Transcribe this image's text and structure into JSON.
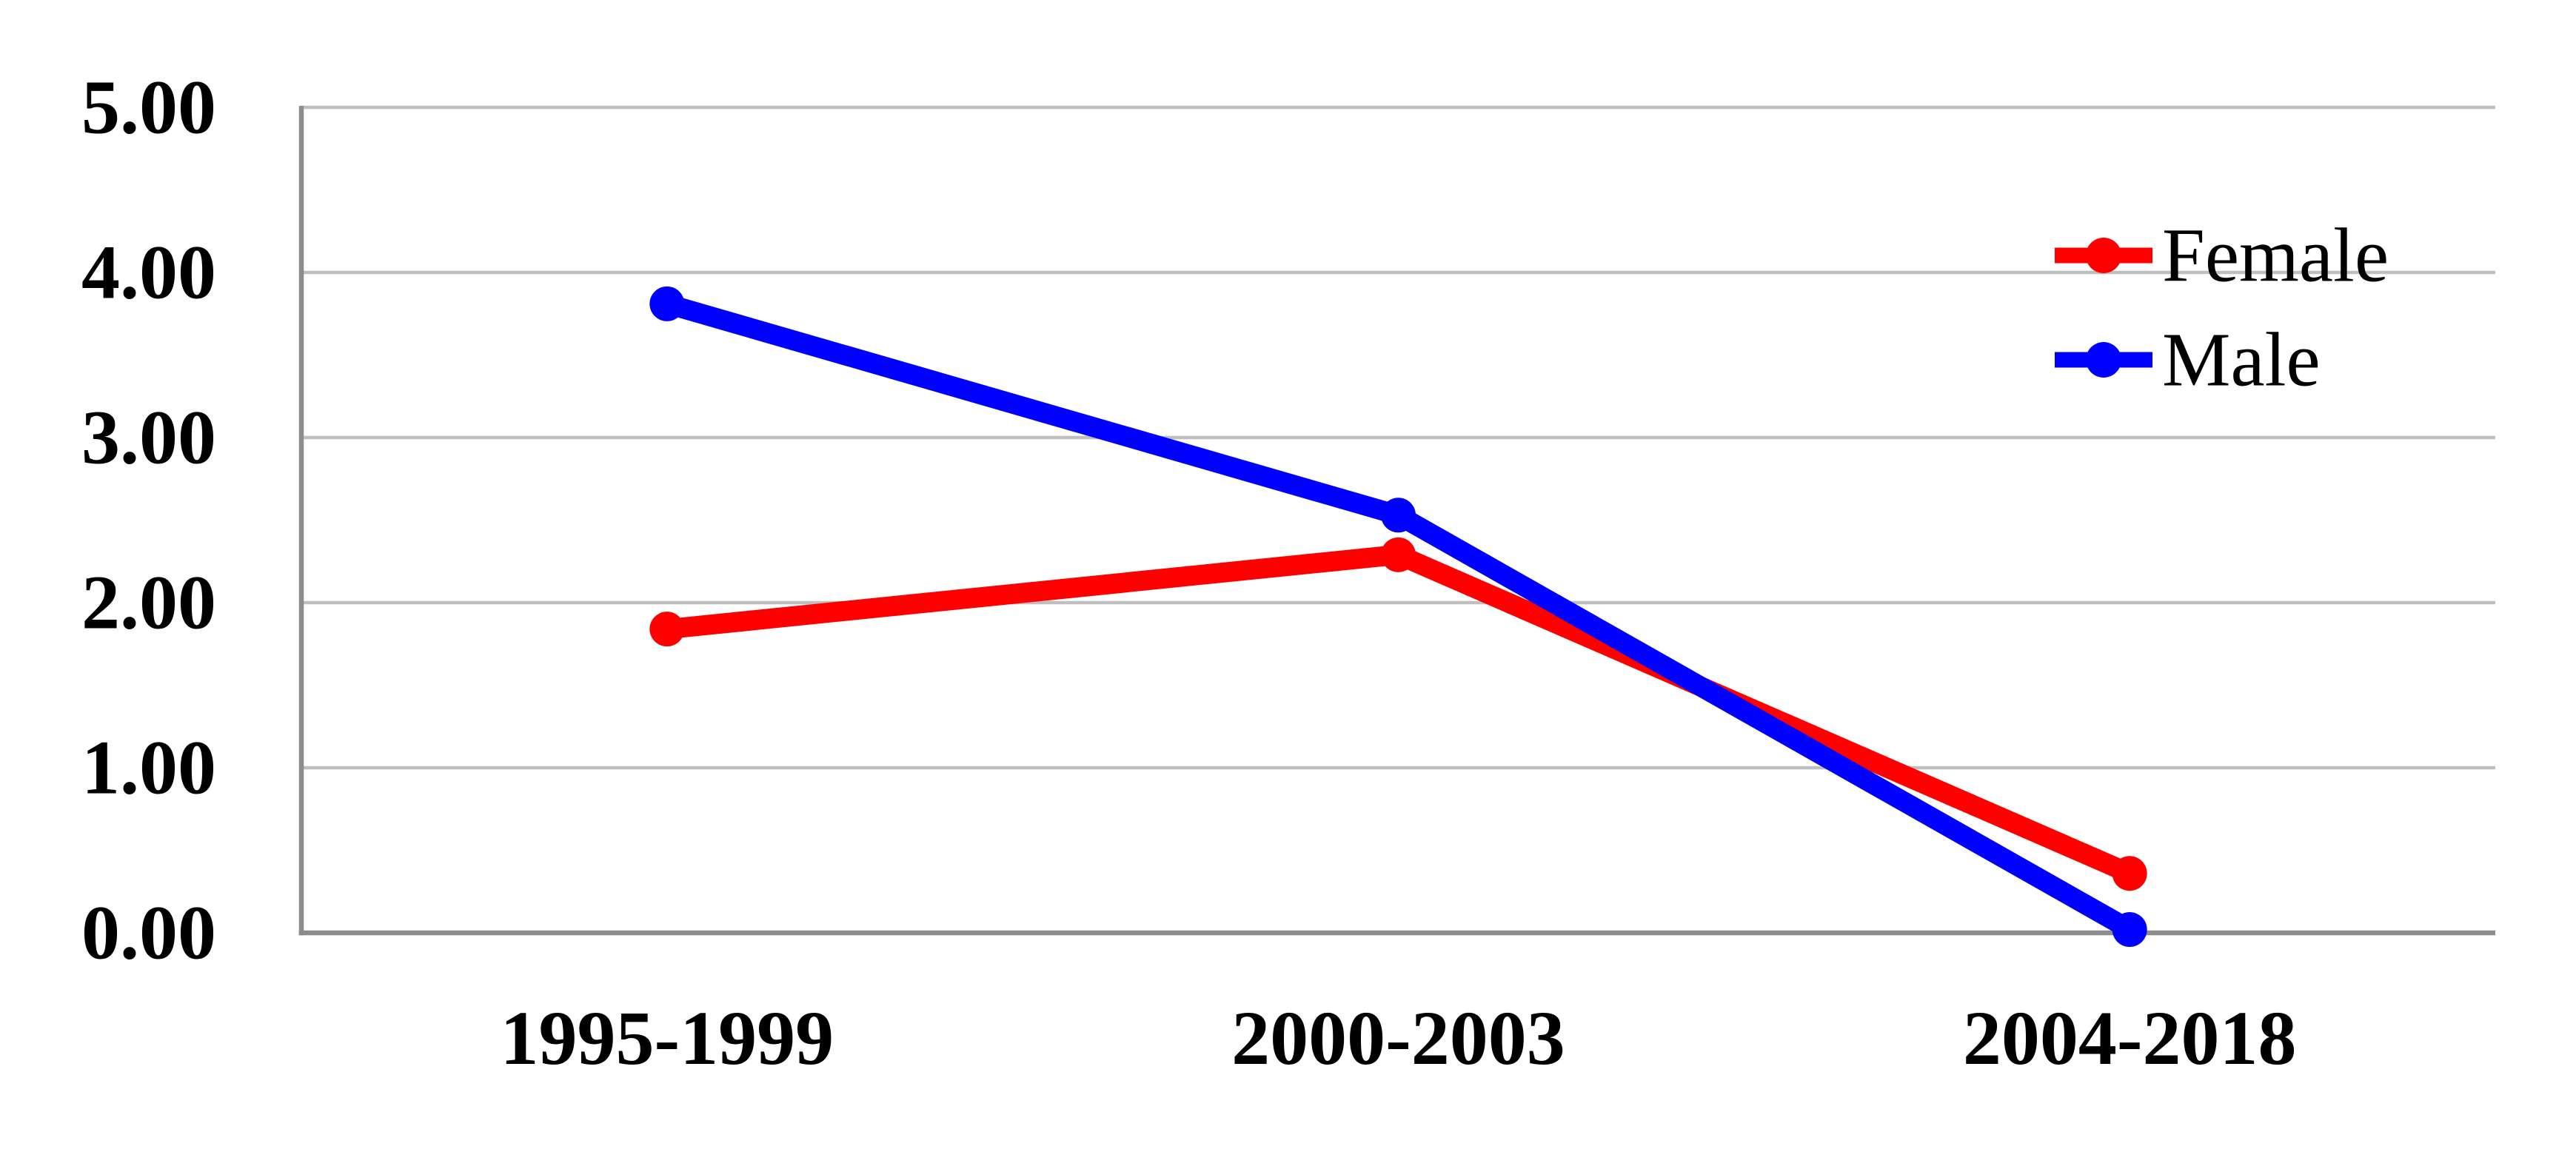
{
  "chart_data": {
    "type": "line",
    "title": "",
    "xlabel": "",
    "ylabel": "",
    "categories": [
      "1995-1999",
      "2000-2003",
      "2004-2018"
    ],
    "series": [
      {
        "name": "Female",
        "color": "#FF0000",
        "values": [
          1.84,
          2.29,
          0.36
        ]
      },
      {
        "name": "Male",
        "color": "#0000FF",
        "values": [
          3.81,
          2.53,
          0.02
        ]
      }
    ],
    "ylim": [
      0,
      5
    ],
    "ytick_step": 1.0,
    "ytick_labels": [
      "0.00",
      "1.00",
      "2.00",
      "3.00",
      "4.00",
      "5.00"
    ],
    "grid": true,
    "legend_position": "inside-upper-right",
    "legend_entries": [
      "Female",
      "Male"
    ],
    "colors": {
      "female_line": "#FF0000",
      "male_line": "#0000FF",
      "gridline": "#BFBFBF",
      "axis_line": "#8C8C8C",
      "label_text": "#000000",
      "background": "#FFFFFF"
    }
  }
}
